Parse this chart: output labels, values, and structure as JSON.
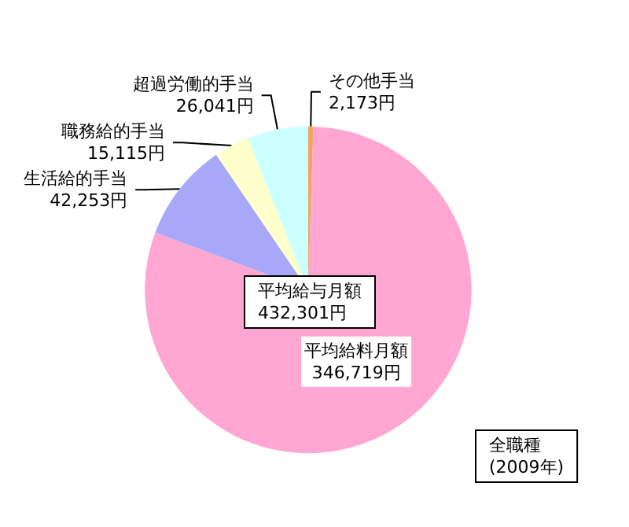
{
  "chart_data": {
    "type": "pie",
    "categories": [
      "その他手当",
      "平均給料月額",
      "生活給的手当",
      "職務給的手当",
      "超過労働的手当"
    ],
    "values": [
      2173,
      346719,
      42253,
      15115,
      26041
    ],
    "value_labels": [
      "2,173円",
      "346,719円",
      "42,253円",
      "15,115円",
      "26,041円"
    ],
    "colors": [
      "#f4a460",
      "#ffa6d2",
      "#a8a8f8",
      "#ffffcc",
      "#ccffff"
    ],
    "annotations": [
      "平均給与月額\n432,301円",
      "全職種\n(2009年)"
    ],
    "legend": false
  }
}
